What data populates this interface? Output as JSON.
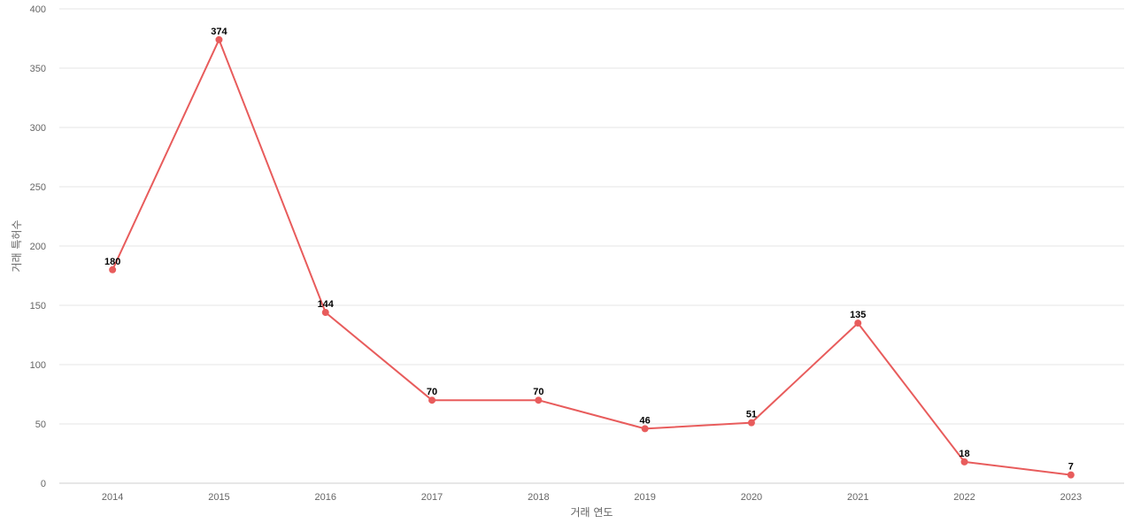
{
  "chart_data": {
    "type": "line",
    "title": "",
    "xlabel": "거래 연도",
    "ylabel": "거래 특허수",
    "ylim": [
      0,
      400
    ],
    "yticks": [
      0,
      50,
      100,
      150,
      200,
      250,
      300,
      350,
      400
    ],
    "categories": [
      "2014",
      "2015",
      "2016",
      "2017",
      "2018",
      "2019",
      "2020",
      "2021",
      "2022",
      "2023"
    ],
    "series": [
      {
        "values": [
          180,
          374,
          144,
          70,
          70,
          46,
          51,
          135,
          18,
          7
        ],
        "color": "#e85c5c"
      }
    ],
    "grid": true,
    "legend": "none",
    "data_labels": true
  }
}
